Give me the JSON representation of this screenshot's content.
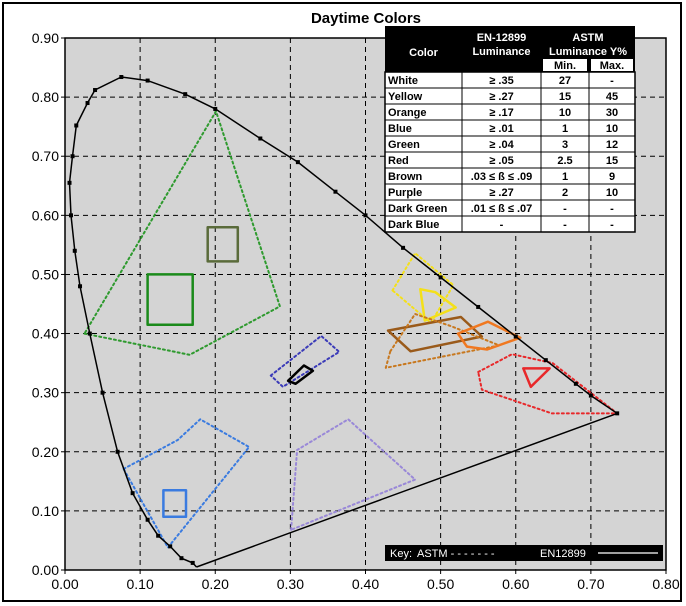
{
  "chart_data": {
    "type": "scatter",
    "title": "Daytime Colors",
    "xlabel": "",
    "ylabel": "",
    "xlim": [
      0.0,
      0.8
    ],
    "ylim": [
      0.0,
      0.9
    ],
    "x_ticks": [
      "0.00",
      "0.10",
      "0.20",
      "0.30",
      "0.40",
      "0.50",
      "0.60",
      "0.70",
      "0.80"
    ],
    "y_ticks": [
      "0.00",
      "0.10",
      "0.20",
      "0.30",
      "0.40",
      "0.50",
      "0.60",
      "0.70",
      "0.80",
      "0.90"
    ],
    "grid": true,
    "background_color": "#d4d4d4",
    "spectral_locus": [
      [
        0.175,
        0.005
      ],
      [
        0.17,
        0.012
      ],
      [
        0.155,
        0.02
      ],
      [
        0.14,
        0.04
      ],
      [
        0.124,
        0.058
      ],
      [
        0.11,
        0.085
      ],
      [
        0.09,
        0.13
      ],
      [
        0.07,
        0.2
      ],
      [
        0.05,
        0.3
      ],
      [
        0.033,
        0.4
      ],
      [
        0.02,
        0.48
      ],
      [
        0.013,
        0.54
      ],
      [
        0.008,
        0.6
      ],
      [
        0.006,
        0.655
      ],
      [
        0.01,
        0.7
      ],
      [
        0.015,
        0.752
      ],
      [
        0.03,
        0.79
      ],
      [
        0.04,
        0.812
      ],
      [
        0.075,
        0.834
      ],
      [
        0.11,
        0.828
      ],
      [
        0.16,
        0.805
      ],
      [
        0.2,
        0.78
      ],
      [
        0.26,
        0.73
      ],
      [
        0.31,
        0.69
      ],
      [
        0.36,
        0.64
      ],
      [
        0.4,
        0.6
      ],
      [
        0.45,
        0.545
      ],
      [
        0.5,
        0.495
      ],
      [
        0.55,
        0.445
      ],
      [
        0.6,
        0.395
      ],
      [
        0.64,
        0.355
      ],
      [
        0.68,
        0.315
      ],
      [
        0.7,
        0.295
      ],
      [
        0.735,
        0.265
      ],
      [
        0.175,
        0.005
      ]
    ],
    "regions": [
      {
        "name": "Green",
        "color": "#2e9a2e",
        "style": "dotted",
        "points": [
          [
            0.026,
            0.4
          ],
          [
            0.166,
            0.364
          ],
          [
            0.286,
            0.446
          ],
          [
            0.201,
            0.776
          ]
        ]
      },
      {
        "name": "Green",
        "color": "#1a8a1a",
        "style": "solid",
        "points": [
          [
            0.11,
            0.415
          ],
          [
            0.17,
            0.415
          ],
          [
            0.17,
            0.5
          ],
          [
            0.11,
            0.5
          ]
        ]
      },
      {
        "name": "Brown",
        "color": "#5a6b3a",
        "style": "solid",
        "points": [
          [
            0.19,
            0.522
          ],
          [
            0.23,
            0.522
          ],
          [
            0.23,
            0.58
          ],
          [
            0.19,
            0.58
          ]
        ]
      },
      {
        "name": "Blue",
        "color": "#3a7be0",
        "style": "dotted",
        "points": [
          [
            0.078,
            0.171
          ],
          [
            0.15,
            0.22
          ],
          [
            0.18,
            0.255
          ],
          [
            0.245,
            0.208
          ],
          [
            0.137,
            0.038
          ]
        ]
      },
      {
        "name": "Blue",
        "color": "#3a7be0",
        "style": "solid",
        "points": [
          [
            0.131,
            0.09
          ],
          [
            0.161,
            0.09
          ],
          [
            0.161,
            0.135
          ],
          [
            0.131,
            0.135
          ]
        ]
      },
      {
        "name": "Purple",
        "color": "#9988d8",
        "style": "dotted",
        "points": [
          [
            0.301,
            0.068
          ],
          [
            0.309,
            0.203
          ],
          [
            0.377,
            0.255
          ],
          [
            0.466,
            0.153
          ]
        ]
      },
      {
        "name": "White",
        "color": "#3a3ab8",
        "style": "dotted",
        "points": [
          [
            0.274,
            0.329
          ],
          [
            0.341,
            0.396
          ],
          [
            0.365,
            0.369
          ],
          [
            0.29,
            0.31
          ]
        ]
      },
      {
        "name": "White",
        "color": "#000000",
        "style": "solid",
        "points": [
          [
            0.297,
            0.32
          ],
          [
            0.318,
            0.346
          ],
          [
            0.33,
            0.337
          ],
          [
            0.307,
            0.315
          ]
        ]
      },
      {
        "name": "Yellow",
        "color": "#f4e019",
        "style": "dotted",
        "points": [
          [
            0.436,
            0.473
          ],
          [
            0.466,
            0.536
          ],
          [
            0.517,
            0.482
          ],
          [
            0.487,
            0.418
          ]
        ]
      },
      {
        "name": "Yellow",
        "color": "#f4e019",
        "style": "solid",
        "points": [
          [
            0.479,
            0.422
          ],
          [
            0.52,
            0.444
          ],
          [
            0.493,
            0.47
          ],
          [
            0.473,
            0.475
          ]
        ]
      },
      {
        "name": "Brown",
        "color": "#9a5a1a",
        "style": "solid",
        "points": [
          [
            0.43,
            0.405
          ],
          [
            0.527,
            0.428
          ],
          [
            0.555,
            0.395
          ],
          [
            0.46,
            0.37
          ]
        ]
      },
      {
        "name": "Orange",
        "color": "#c8781e",
        "style": "dotted",
        "points": [
          [
            0.433,
            0.37
          ],
          [
            0.466,
            0.433
          ],
          [
            0.513,
            0.413
          ],
          [
            0.578,
            0.38
          ],
          [
            0.427,
            0.342
          ]
        ]
      },
      {
        "name": "Orange",
        "color": "#f07820",
        "style": "solid",
        "points": [
          [
            0.523,
            0.4
          ],
          [
            0.563,
            0.42
          ],
          [
            0.606,
            0.393
          ],
          [
            0.562,
            0.373
          ],
          [
            0.535,
            0.378
          ]
        ]
      },
      {
        "name": "Red",
        "color": "#e8282a",
        "style": "dotted",
        "points": [
          [
            0.55,
            0.335
          ],
          [
            0.595,
            0.365
          ],
          [
            0.649,
            0.35
          ],
          [
            0.735,
            0.265
          ],
          [
            0.648,
            0.265
          ],
          [
            0.555,
            0.305
          ]
        ]
      },
      {
        "name": "Red",
        "color": "#e8282a",
        "style": "solid",
        "points": [
          [
            0.61,
            0.341
          ],
          [
            0.645,
            0.341
          ],
          [
            0.62,
            0.31
          ]
        ]
      }
    ],
    "table": {
      "headers": [
        "Color",
        "EN-12899 Luminance",
        "ASTM Luminance Y%"
      ],
      "header_lines": {
        "col1": [
          "EN-12899",
          "Luminance"
        ],
        "col2": [
          "ASTM",
          "Luminance Y%"
        ],
        "sub": [
          "Min.",
          "Max."
        ]
      },
      "rows": [
        [
          "White",
          "≥ .35",
          "27",
          "-"
        ],
        [
          "Yellow",
          "≥ .27",
          "15",
          "45"
        ],
        [
          "Orange",
          "≥ .17",
          "10",
          "30"
        ],
        [
          "Blue",
          "≥ .01",
          "1",
          "10"
        ],
        [
          "Green",
          "≥ .04",
          "3",
          "12"
        ],
        [
          "Red",
          "≥ .05",
          "2.5",
          "15"
        ],
        [
          "Brown",
          ".03 ≤ ß ≤ .09",
          "1",
          "9"
        ],
        [
          "Purple",
          "≥ .27",
          "2",
          "10"
        ],
        [
          "Dark Green",
          ".01 ≤ ß ≤ .07",
          "-",
          "-"
        ],
        [
          "Dark Blue",
          "-",
          "-",
          "-"
        ]
      ]
    },
    "key": {
      "label": "Key:",
      "astm": "ASTM - - - - - - -",
      "en": "EN12899"
    }
  }
}
